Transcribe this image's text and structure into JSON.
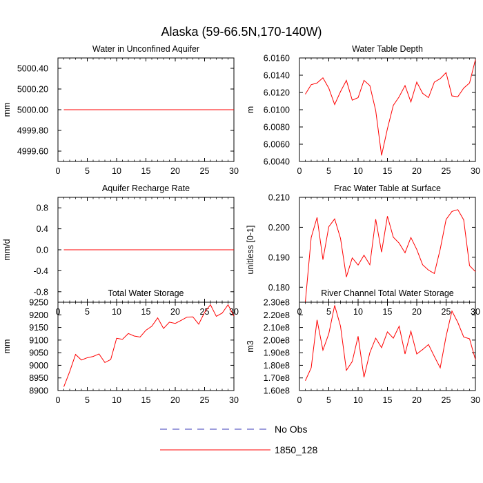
{
  "figure": {
    "title": "Alaska (59-66.5N,170-140W)",
    "legend": [
      {
        "label": "No Obs",
        "color": "#3b3bb8",
        "dash": true
      },
      {
        "label": "1850_128",
        "color": "#ff0000",
        "dash": false
      }
    ]
  },
  "chart_data": [
    {
      "type": "line",
      "title": "Water in Unconfined Aquifer",
      "ylabel": "mm",
      "xlim": [
        0,
        30
      ],
      "ylim": [
        4999.5,
        5000.5
      ],
      "xticks": [
        0,
        5,
        10,
        15,
        20,
        25,
        30
      ],
      "xtick_labels": [
        "0",
        "5",
        "10",
        "15",
        "20",
        "25",
        "30"
      ],
      "yticks": [
        4999.6,
        4999.8,
        5000.0,
        5000.2,
        5000.4
      ],
      "ytick_labels": [
        "4999.60",
        "4999.80",
        "5000.00",
        "5000.20",
        "5000.40"
      ],
      "series": [
        {
          "name": "1850_128",
          "color": "#ff0000",
          "x": [
            1,
            2,
            3,
            4,
            5,
            6,
            7,
            8,
            9,
            10,
            11,
            12,
            13,
            14,
            15,
            16,
            17,
            18,
            19,
            20,
            21,
            22,
            23,
            24,
            25,
            26,
            27,
            28,
            29,
            30
          ],
          "y": [
            5000.0,
            5000.0,
            5000.0,
            5000.0,
            5000.0,
            5000.0,
            5000.0,
            5000.0,
            5000.0,
            5000.0,
            5000.0,
            5000.0,
            5000.0,
            5000.0,
            5000.0,
            5000.0,
            5000.0,
            5000.0,
            5000.0,
            5000.0,
            5000.0,
            5000.0,
            5000.0,
            5000.0,
            5000.0,
            5000.0,
            5000.0,
            5000.0,
            5000.0,
            5000.0
          ]
        }
      ]
    },
    {
      "type": "line",
      "title": "Water Table Depth",
      "ylabel": "m",
      "xlim": [
        0,
        30
      ],
      "ylim": [
        6.004,
        6.016
      ],
      "xticks": [
        0,
        5,
        10,
        15,
        20,
        25,
        30
      ],
      "xtick_labels": [
        "0",
        "5",
        "10",
        "15",
        "20",
        "25",
        "30"
      ],
      "yticks": [
        6.004,
        6.006,
        6.008,
        6.01,
        6.012,
        6.014,
        6.016
      ],
      "ytick_labels": [
        "6.0040",
        "6.0060",
        "6.0080",
        "6.0100",
        "6.0120",
        "6.0140",
        "6.0160"
      ],
      "series": [
        {
          "name": "1850_128",
          "color": "#ff0000",
          "x": [
            1,
            2,
            3,
            4,
            5,
            6,
            7,
            8,
            9,
            10,
            11,
            12,
            13,
            14,
            15,
            16,
            17,
            18,
            19,
            20,
            21,
            22,
            23,
            24,
            25,
            26,
            27,
            28,
            29,
            30
          ],
          "y": [
            6.0118,
            6.0129,
            6.0131,
            6.0137,
            6.0125,
            6.0106,
            6.0121,
            6.0134,
            6.0111,
            6.0114,
            6.0134,
            6.0128,
            6.0099,
            6.0047,
            6.0078,
            6.0105,
            6.0115,
            6.0128,
            6.0109,
            6.0132,
            6.0119,
            6.0114,
            6.0132,
            6.0136,
            6.0143,
            6.0116,
            6.0115,
            6.0125,
            6.0131,
            6.0158
          ]
        }
      ]
    },
    {
      "type": "line",
      "title": "Aquifer Recharge Rate",
      "ylabel": "mm/d",
      "xlim": [
        0,
        30
      ],
      "ylim": [
        -1.0,
        1.0
      ],
      "xticks": [
        0,
        5,
        10,
        15,
        20,
        25,
        30
      ],
      "xtick_labels": [
        "0",
        "5",
        "10",
        "15",
        "20",
        "25",
        "30"
      ],
      "yticks": [
        -0.8,
        -0.4,
        0.0,
        0.4,
        0.8
      ],
      "ytick_labels": [
        "-0.8",
        "-0.4",
        "0.0",
        "0.4",
        "0.8"
      ],
      "series": [
        {
          "name": "1850_128",
          "color": "#ff0000",
          "x": [
            1,
            2,
            3,
            4,
            5,
            6,
            7,
            8,
            9,
            10,
            11,
            12,
            13,
            14,
            15,
            16,
            17,
            18,
            19,
            20,
            21,
            22,
            23,
            24,
            25,
            26,
            27,
            28,
            29,
            30
          ],
          "y": [
            0,
            0,
            0,
            0,
            0,
            0,
            0,
            0,
            0,
            0,
            0,
            0,
            0,
            0,
            0,
            0,
            0,
            0,
            0,
            0,
            0,
            0,
            0,
            0,
            0,
            0,
            0,
            0,
            0,
            0
          ]
        }
      ]
    },
    {
      "type": "line",
      "title": "Frac Water Table at Surface",
      "ylabel": "unitless [0-1]",
      "xlim": [
        0,
        30
      ],
      "ylim": [
        0.175,
        0.21
      ],
      "xticks": [
        0,
        5,
        10,
        15,
        20,
        25,
        30
      ],
      "xtick_labels": [
        "0",
        "5",
        "10",
        "15",
        "20",
        "25",
        "30"
      ],
      "yticks": [
        0.18,
        0.19,
        0.2,
        0.21
      ],
      "ytick_labels": [
        "0.180",
        "0.190",
        "0.200",
        "0.210"
      ],
      "series": [
        {
          "name": "1850_128",
          "color": "#ff0000",
          "x": [
            1,
            2,
            3,
            4,
            5,
            6,
            7,
            8,
            9,
            10,
            11,
            12,
            13,
            14,
            15,
            16,
            17,
            18,
            19,
            20,
            21,
            22,
            23,
            24,
            25,
            26,
            27,
            28,
            29,
            30
          ],
          "y": [
            0.175,
            0.1966,
            0.2033,
            0.1892,
            0.2002,
            0.2028,
            0.1963,
            0.1834,
            0.1898,
            0.1874,
            0.1907,
            0.1875,
            0.2027,
            0.1917,
            0.2037,
            0.1967,
            0.1947,
            0.1915,
            0.1966,
            0.1926,
            0.1875,
            0.1857,
            0.1846,
            0.1927,
            0.2026,
            0.2053,
            0.2059,
            0.2025,
            0.1872,
            0.1852
          ]
        }
      ]
    },
    {
      "type": "line",
      "title": "Total Water Storage",
      "ylabel": "mm",
      "xlim": [
        0,
        30
      ],
      "ylim": [
        8900,
        9250
      ],
      "xticks": [
        0,
        5,
        10,
        15,
        20,
        25,
        30
      ],
      "xtick_labels": [
        "0",
        "5",
        "10",
        "15",
        "20",
        "25",
        "30"
      ],
      "yticks": [
        8900,
        8950,
        9000,
        9050,
        9100,
        9150,
        9200,
        9250
      ],
      "ytick_labels": [
        "8900",
        "8950",
        "9000",
        "9050",
        "9100",
        "9150",
        "9200",
        "9250"
      ],
      "series": [
        {
          "name": "1850_128",
          "color": "#ff0000",
          "x": [
            1,
            2,
            3,
            4,
            5,
            6,
            7,
            8,
            9,
            10,
            11,
            12,
            13,
            14,
            15,
            16,
            17,
            18,
            19,
            20,
            21,
            22,
            23,
            24,
            25,
            26,
            27,
            28,
            29,
            30
          ],
          "y": [
            8915,
            8975,
            9043,
            9021,
            9030,
            9035,
            9045,
            9011,
            9023,
            9107,
            9103,
            9126,
            9116,
            9112,
            9139,
            9155,
            9188,
            9146,
            9171,
            9166,
            9178,
            9191,
            9192,
            9163,
            9210,
            9240,
            9194,
            9207,
            9240,
            9195
          ]
        }
      ]
    },
    {
      "type": "line",
      "title": "River Channel Total Water Storage",
      "ylabel": "m3",
      "xlim": [
        0,
        30
      ],
      "ylim": [
        160000000,
        230000000
      ],
      "xticks": [
        0,
        5,
        10,
        15,
        20,
        25,
        30
      ],
      "xtick_labels": [
        "0",
        "5",
        "10",
        "15",
        "20",
        "25",
        "30"
      ],
      "yticks": [
        160000000,
        170000000,
        180000000,
        190000000,
        200000000,
        210000000,
        220000000,
        230000000
      ],
      "ytick_labels": [
        "1.60e8",
        "1.70e8",
        "1.80e8",
        "1.90e8",
        "2.00e8",
        "2.10e8",
        "2.20e8",
        "2.30e8"
      ],
      "series": [
        {
          "name": "1850_128",
          "color": "#ff0000",
          "x": [
            1,
            2,
            3,
            4,
            5,
            6,
            7,
            8,
            9,
            10,
            11,
            12,
            13,
            14,
            15,
            16,
            17,
            18,
            19,
            20,
            21,
            22,
            23,
            24,
            25,
            26,
            27,
            28,
            29,
            30
          ],
          "y": [
            167800000,
            178000000,
            216000000,
            192000000,
            205000000,
            227500000,
            211000000,
            176000000,
            183000000,
            203000000,
            170500000,
            190000000,
            201500000,
            194000000,
            206500000,
            201500000,
            211000000,
            189000000,
            207000000,
            189000000,
            192500000,
            196500000,
            187000000,
            178000000,
            203000000,
            223000000,
            214000000,
            202500000,
            201000000,
            184500000
          ]
        }
      ]
    }
  ]
}
